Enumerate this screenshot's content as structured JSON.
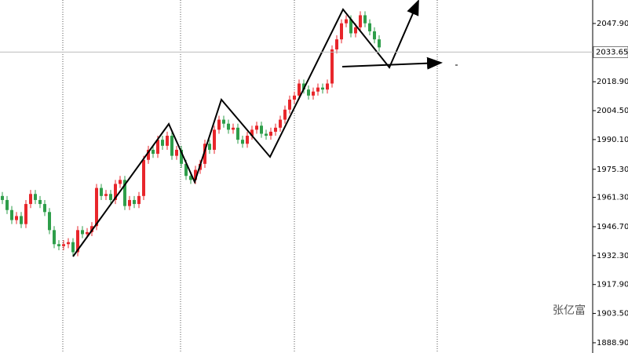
{
  "chart_data": {
    "type": "candlestick",
    "open": [
      1962,
      1960,
      1955,
      1950,
      1952,
      1948,
      1958,
      1963,
      1960,
      1958,
      1954,
      1945,
      1938,
      1937,
      1938,
      1939,
      1934,
      1945,
      1943,
      1944,
      1947,
      1966,
      1962,
      1963,
      1960,
      1968,
      1970,
      1957,
      1960,
      1958,
      1962,
      1980,
      1985,
      1983,
      1990,
      1987,
      1992,
      1982,
      1985,
      1978,
      1972,
      1970,
      1975,
      1978,
      1988,
      1985,
      1995,
      2000,
      1998,
      1995,
      1996,
      1990,
      1988,
      1992,
      1995,
      1997,
      1993,
      1992,
      1994,
      1996,
      2000,
      2005,
      2010,
      2012,
      2018,
      2015,
      2012,
      2014,
      2016,
      2015,
      2018,
      2035,
      2040,
      2048,
      2050,
      2043,
      2046,
      2052,
      2048,
      2044,
      2040
    ],
    "high": [
      1964,
      1962,
      1957,
      1954,
      1954,
      1960,
      1965,
      1965,
      1962,
      1960,
      1956,
      1947,
      1940,
      1940,
      1941,
      1941,
      1947,
      1947,
      1946,
      1949,
      1968,
      1968,
      1965,
      1965,
      1970,
      1972,
      1972,
      1962,
      1962,
      1964,
      1982,
      1987,
      1987,
      1992,
      1992,
      1994,
      1994,
      1987,
      1987,
      1980,
      1974,
      1977,
      1980,
      1990,
      1990,
      1997,
      2002,
      2002,
      2000,
      1998,
      1998,
      1992,
      1994,
      1997,
      1999,
      1999,
      1995,
      1996,
      1998,
      2002,
      2007,
      2012,
      2014,
      2020,
      2020,
      2017,
      2016,
      2018,
      2018,
      2020,
      2037,
      2042,
      2050,
      2052,
      2052,
      2048,
      2054,
      2054,
      2050,
      2046,
      2042
    ],
    "low": [
      1958,
      1953,
      1948,
      1948,
      1946,
      1946,
      1956,
      1958,
      1956,
      1952,
      1943,
      1936,
      1935,
      1935,
      1936,
      1932,
      1932,
      1941,
      1941,
      1942,
      1945,
      1960,
      1960,
      1958,
      1958,
      1966,
      1955,
      1955,
      1956,
      1956,
      1960,
      1978,
      1981,
      1981,
      1985,
      1985,
      1980,
      1980,
      1976,
      1970,
      1968,
      1968,
      1973,
      1976,
      1983,
      1983,
      1993,
      1996,
      1993,
      1993,
      1988,
      1986,
      1986,
      1990,
      1993,
      1991,
      1990,
      1990,
      1992,
      1994,
      1998,
      2003,
      2008,
      2010,
      2013,
      2010,
      2010,
      2012,
      2013,
      2013,
      2016,
      2033,
      2038,
      2046,
      2041,
      2041,
      2044,
      2046,
      2042,
      2038,
      2034
    ],
    "close": [
      1960,
      1955,
      1950,
      1952,
      1948,
      1958,
      1963,
      1960,
      1958,
      1954,
      1945,
      1938,
      1937,
      1938,
      1939,
      1934,
      1945,
      1943,
      1944,
      1947,
      1966,
      1962,
      1963,
      1960,
      1968,
      1970,
      1957,
      1960,
      1958,
      1962,
      1980,
      1985,
      1983,
      1990,
      1987,
      1992,
      1982,
      1985,
      1978,
      1972,
      1970,
      1975,
      1978,
      1988,
      1985,
      1995,
      2000,
      1998,
      1995,
      1996,
      1990,
      1988,
      1992,
      1995,
      1997,
      1993,
      1992,
      1994,
      1996,
      2000,
      2005,
      2010,
      2012,
      2018,
      2015,
      2012,
      2014,
      2016,
      2015,
      2018,
      2035,
      2040,
      2048,
      2050,
      2043,
      2046,
      2052,
      2048,
      2044,
      2040,
      2036
    ],
    "up_color": "#e8262b",
    "down_color": "#2e9e4a",
    "ylim": [
      1883.8,
      2059.6
    ],
    "yticks": [
      {
        "value": 2047.9,
        "label": "2047.90"
      },
      {
        "value": 2018.9,
        "label": "2018.90"
      },
      {
        "value": 2004.5,
        "label": "2004.50"
      },
      {
        "value": 1990.1,
        "label": "1990.10"
      },
      {
        "value": 1975.3,
        "label": "1975.30"
      },
      {
        "value": 1961.3,
        "label": "1961.30"
      },
      {
        "value": 1946.7,
        "label": "1946.70"
      },
      {
        "value": 1932.3,
        "label": "1932.30"
      },
      {
        "value": 1917.9,
        "label": "1917.90"
      },
      {
        "value": 1903.5,
        "label": "1903.50"
      },
      {
        "value": 1888.9,
        "label": "1888.90"
      }
    ],
    "last_price": 2033.65,
    "watermark": "张亿富"
  }
}
